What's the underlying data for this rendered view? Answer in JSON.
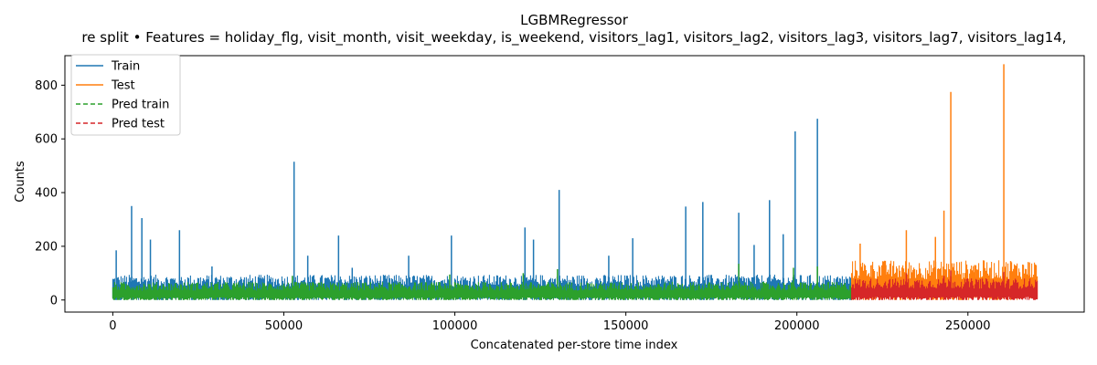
{
  "chart_data": {
    "type": "line",
    "title": "LGBMRegressor",
    "subtitle": "re split • Features = holiday_flg, visit_month, visit_weekday, is_weekend, visitors_lag1, visitors_lag2, visitors_lag3, visitors_lag7, visitors_lag14,",
    "xlabel": "Concatenated per-store time index",
    "ylabel": "Counts",
    "xlim": [
      -14000,
      284000
    ],
    "ylim": [
      -45,
      910
    ],
    "xticks": [
      0,
      50000,
      100000,
      150000,
      200000,
      250000
    ],
    "xtick_labels": [
      "0",
      "50000",
      "100000",
      "150000",
      "200000",
      "250000"
    ],
    "yticks": [
      0,
      200,
      400,
      600,
      800
    ],
    "ytick_labels": [
      "0",
      "200",
      "400",
      "600",
      "800"
    ],
    "grid": false,
    "legend_position": "top-left",
    "train_end": 216000,
    "test_end": 270500,
    "series": [
      {
        "name": "Train",
        "color": "#1f77b4",
        "style": "solid",
        "baseline": [
          [
            0,
            35
          ],
          [
            216000,
            35
          ]
        ],
        "peaks": [
          [
            1000,
            185
          ],
          [
            5500,
            350
          ],
          [
            8500,
            305
          ],
          [
            11000,
            225
          ],
          [
            19500,
            260
          ],
          [
            29000,
            125
          ],
          [
            53000,
            515
          ],
          [
            57000,
            165
          ],
          [
            66000,
            240
          ],
          [
            70000,
            120
          ],
          [
            86500,
            165
          ],
          [
            99000,
            240
          ],
          [
            120500,
            270
          ],
          [
            123000,
            225
          ],
          [
            130500,
            410
          ],
          [
            145000,
            165
          ],
          [
            152000,
            230
          ],
          [
            167500,
            348
          ],
          [
            172500,
            365
          ],
          [
            183000,
            325
          ],
          [
            187500,
            205
          ],
          [
            192000,
            372
          ],
          [
            196000,
            245
          ],
          [
            199500,
            628
          ],
          [
            206000,
            675
          ]
        ]
      },
      {
        "name": "Test",
        "color": "#ff7f0e",
        "style": "solid",
        "baseline": [
          [
            216000,
            55
          ],
          [
            270500,
            55
          ]
        ],
        "peaks": [
          [
            218500,
            210
          ],
          [
            222000,
            130
          ],
          [
            226000,
            130
          ],
          [
            232000,
            260
          ],
          [
            240500,
            235
          ],
          [
            243000,
            333
          ],
          [
            245000,
            775
          ],
          [
            252000,
            130
          ],
          [
            256500,
            120
          ],
          [
            260500,
            878
          ],
          [
            262500,
            145
          ],
          [
            268000,
            140
          ]
        ]
      },
      {
        "name": "Pred train",
        "color": "#2ca02c",
        "style": "dashed",
        "baseline": [
          [
            0,
            25
          ],
          [
            216000,
            25
          ]
        ],
        "peaks": [
          [
            52500,
            90
          ],
          [
            98500,
            95
          ],
          [
            120000,
            100
          ],
          [
            130000,
            115
          ],
          [
            183000,
            135
          ],
          [
            199000,
            120
          ],
          [
            206000,
            125
          ]
        ]
      },
      {
        "name": "Pred test",
        "color": "#d62728",
        "style": "dashed",
        "baseline": [
          [
            216000,
            30
          ],
          [
            270500,
            30
          ]
        ],
        "peaks": [
          [
            232000,
            100
          ],
          [
            243000,
            90
          ],
          [
            245000,
            110
          ],
          [
            260500,
            105
          ]
        ]
      }
    ]
  }
}
